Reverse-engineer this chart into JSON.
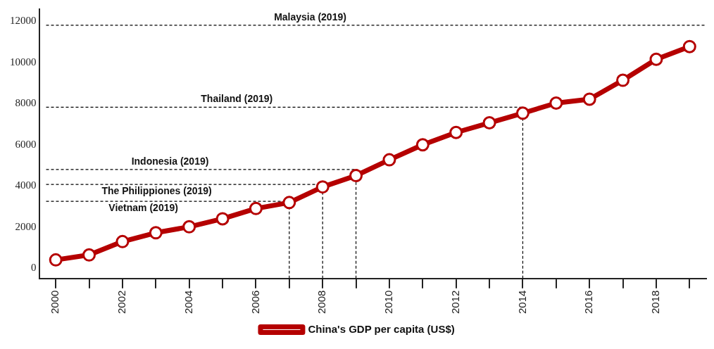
{
  "chart_data": {
    "type": "line",
    "x": [
      2000,
      2001,
      2002,
      2003,
      2004,
      2005,
      2006,
      2007,
      2008,
      2009,
      2010,
      2011,
      2012,
      2013,
      2014,
      2015,
      2016,
      2017,
      2018,
      2019
    ],
    "series": [
      {
        "name": "China's GDP per capita (US$)",
        "color": "#b50000",
        "values": [
          400,
          640,
          1290,
          1720,
          2010,
          2400,
          2900,
          3190,
          3950,
          4500,
          5270,
          6000,
          6600,
          7070,
          7540,
          8030,
          8220,
          9140,
          10160,
          10780
        ]
      }
    ],
    "xlim": [
      1999.5,
      2019.5
    ],
    "xticks": [
      2000,
      {
        "value": 2001,
        "label": null
      },
      2002,
      {
        "value": 2003,
        "label": null
      },
      2004,
      {
        "value": 2005,
        "label": null
      },
      2006,
      {
        "value": 2007,
        "label": null
      },
      2008,
      {
        "value": 2009,
        "label": null
      },
      2010,
      {
        "value": 2011,
        "label": null
      },
      2012,
      {
        "value": 2013,
        "label": null
      },
      2014,
      {
        "value": 2015,
        "label": null
      },
      2016,
      {
        "value": 2017,
        "label": null
      },
      2018,
      {
        "value": 2019,
        "label": null
      }
    ],
    "ylim": [
      -500,
      12600
    ],
    "yticks": [
      0,
      2000,
      4000,
      6000,
      8000,
      10000,
      12000
    ],
    "ref_lines": [
      {
        "axis": "y",
        "value": 3250,
        "label": "Vietnam (2019)",
        "color": "#000000",
        "line_style": "dashed"
      },
      {
        "axis": "y",
        "value": 4070,
        "label": "The Philippiones (2019)",
        "color": "#000000",
        "line_style": "dashed"
      },
      {
        "axis": "y",
        "value": 4800,
        "label": "Indonesia (2019)",
        "color": "#000000",
        "line_style": "dashed"
      },
      {
        "axis": "y",
        "value": 7830,
        "label": "Thailand (2019)",
        "color": "#000000",
        "line_style": "dashed"
      },
      {
        "axis": "y",
        "value": 11820,
        "label": "Malaysia (2019)",
        "color": "#000000",
        "line_style": "dashed"
      },
      {
        "axis": "x",
        "value": 2007,
        "color": "#000000",
        "line_style": "dashed"
      },
      {
        "axis": "x",
        "value": 2008,
        "color": "#000000",
        "line_style": "dashed"
      },
      {
        "axis": "x",
        "value": 2009,
        "color": "#000000",
        "line_style": "dashed"
      },
      {
        "axis": "x",
        "value": 2014,
        "color": "#000000",
        "line_style": "dashed"
      }
    ],
    "grid": false,
    "legend": "bottom",
    "marker": "circle",
    "line_style": "solid"
  }
}
